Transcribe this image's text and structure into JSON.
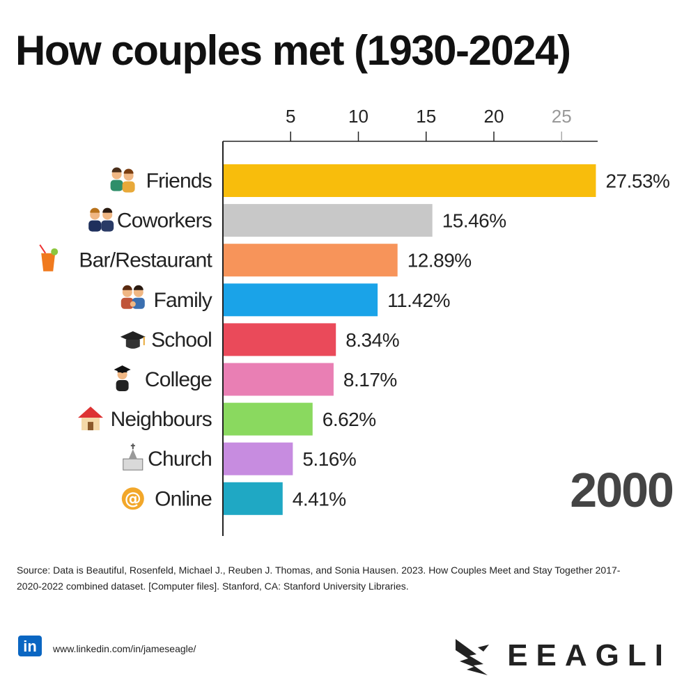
{
  "title": "How couples met (1930-2024)",
  "year": "2000",
  "chart_data": {
    "type": "bar",
    "orientation": "horizontal",
    "xlim": [
      0,
      28
    ],
    "xticks": [
      5,
      10,
      15,
      20,
      25
    ],
    "xtick_labels": [
      "5",
      "10",
      "15",
      "20",
      "25"
    ],
    "xaxis_position": "top",
    "categories": [
      "Friends",
      "Coworkers",
      "Bar/Restaurant",
      "Family",
      "School",
      "College",
      "Neighbours",
      "Church",
      "Online"
    ],
    "values": [
      27.53,
      15.46,
      12.89,
      11.42,
      8.34,
      8.17,
      6.62,
      5.16,
      4.41
    ],
    "value_labels": [
      "27.53%",
      "15.46%",
      "12.89%",
      "11.42%",
      "8.34%",
      "8.17%",
      "6.62%",
      "5.16%",
      "4.41%"
    ],
    "colors": [
      "#f8bd0c",
      "#c8c8c8",
      "#f7945a",
      "#1aa3e8",
      "#ea4a5a",
      "#e97fb4",
      "#8ad95f",
      "#c78ce0",
      "#1fa8c4"
    ],
    "icons": [
      "friends-icon",
      "coworkers-icon",
      "cocktail-icon",
      "family-icon",
      "graduation-cap-icon",
      "graduate-icon",
      "house-icon",
      "church-icon",
      "at-sign-icon"
    ],
    "grid": false
  },
  "footer": {
    "source": "Source: Data is Beautiful, Rosenfeld, Michael J., Reuben J. Thomas, and Sonia Hausen. 2023. How Couples Meet and Stay Together 2017-2020-2022 combined dataset. [Computer files]. Stanford, CA: Stanford University Libraries.",
    "linkedin_url": "www.linkedin.com/in/jameseagle/",
    "brand": "EEAGLI"
  }
}
